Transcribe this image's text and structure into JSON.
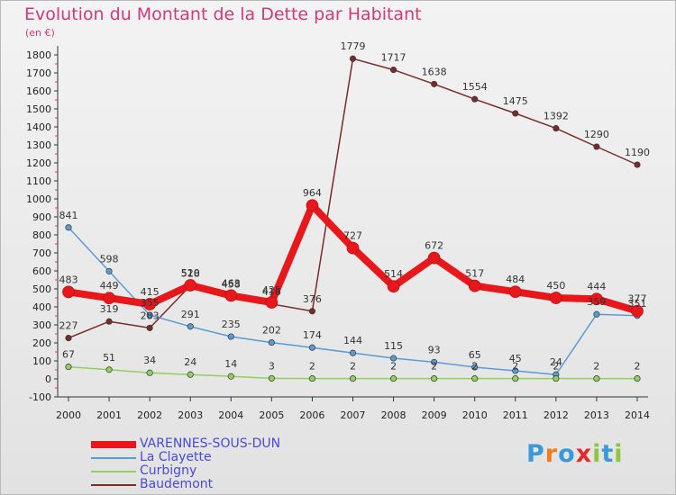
{
  "header": {
    "title": "Evolution du Montant de la Dette par Habitant",
    "unit": "(en €)"
  },
  "brand": {
    "text": "Proxiti",
    "colors": [
      "#3a9ad9",
      "#f07d1a",
      "#3a9ad9",
      "#e6282a",
      "#8cc63f",
      "#3a9ad9",
      "#8cc63f"
    ]
  },
  "chart_data": {
    "type": "line",
    "title": "Evolution du Montant de la Dette par Habitant",
    "ylabel": "(en €)",
    "xlabel": "",
    "x": [
      "2000",
      "2001",
      "2002",
      "2003",
      "2004",
      "2005",
      "2006",
      "2007",
      "2008",
      "2009",
      "2010",
      "2011",
      "2012",
      "2013",
      "2014"
    ],
    "yticks": [
      "-100",
      "0",
      "100",
      "200",
      "300",
      "400",
      "500",
      "600",
      "700",
      "800",
      "900",
      "1000",
      "1100",
      "1200",
      "1300",
      "1400",
      "1500",
      "1600",
      "1700",
      "1800"
    ],
    "ylim": [
      -100,
      1800
    ],
    "grid": false,
    "legend_position": "bottom-left",
    "series": [
      {
        "name": "VARENNES-SOUS-DUN",
        "color": "#e8171b",
        "highlight": true,
        "values": [
          483,
          449,
          415,
          520,
          463,
          425,
          964,
          727,
          514,
          672,
          517,
          484,
          450,
          444,
          377
        ],
        "labels": [
          "483",
          "449",
          "415",
          "520",
          "463",
          "425",
          "964",
          "727",
          "514",
          "672",
          "517",
          "484",
          "450",
          "444",
          "377"
        ]
      },
      {
        "name": "La Clayette",
        "color": "#5b9bd5",
        "highlight": false,
        "values": [
          841,
          598,
          355,
          291,
          235,
          202,
          174,
          144,
          115,
          93,
          65,
          45,
          24,
          359,
          351
        ],
        "labels": [
          "841",
          "598",
          "355",
          "291",
          "235",
          "202",
          "174",
          "144",
          "115",
          "93",
          "65",
          "45",
          "24",
          "359",
          "351"
        ]
      },
      {
        "name": "Curbigny",
        "color": "#8fd05f",
        "highlight": false,
        "values": [
          67,
          51,
          34,
          24,
          14,
          3,
          2,
          2,
          2,
          2,
          2,
          2,
          2,
          2,
          2
        ],
        "labels": [
          "67",
          "51",
          "34",
          "24",
          "14",
          "3",
          "2",
          "2",
          "2",
          "2",
          "2",
          "2",
          "2",
          "2",
          "2"
        ]
      },
      {
        "name": "Baudemont",
        "color": "#7a2a2a",
        "highlight": false,
        "values": [
          227,
          319,
          283,
          518,
          458,
          416,
          376,
          1779,
          1717,
          1638,
          1554,
          1475,
          1392,
          1290,
          1190
        ],
        "labels": [
          "227",
          "319",
          "283",
          "518",
          "458",
          "416",
          "376",
          "1779",
          "1717",
          "1638",
          "1554",
          "1475",
          "1392",
          "1290",
          "1190"
        ]
      }
    ]
  }
}
